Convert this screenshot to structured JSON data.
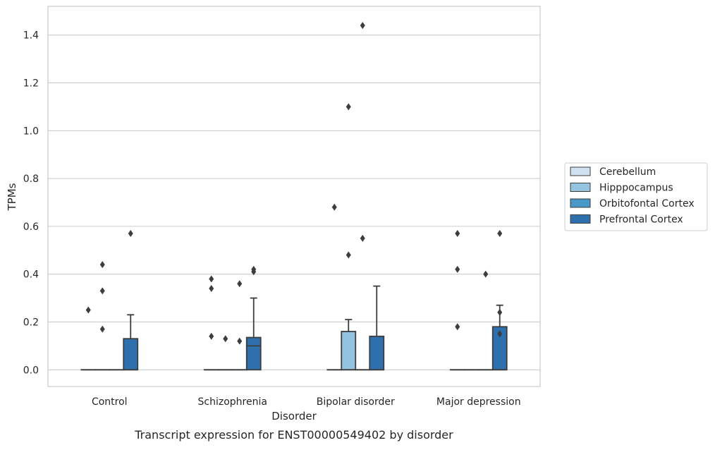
{
  "chart_data": {
    "type": "box",
    "caption": "Transcript expression for ENST00000549402 by disorder",
    "xlabel": "Disorder",
    "ylabel": "TPMs",
    "ylim": [
      -0.07,
      1.52
    ],
    "yticks": [
      0.0,
      0.2,
      0.4,
      0.6,
      0.8,
      1.0,
      1.2,
      1.4
    ],
    "ytick_labels": [
      "0.0",
      "0.2",
      "0.4",
      "0.6",
      "0.8",
      "1.0",
      "1.2",
      "1.4"
    ],
    "grid": "horizontal",
    "legend_position": "right",
    "categories": [
      "Control",
      "Schizophrenia",
      "Bipolar disorder",
      "Major depression"
    ],
    "series": [
      {
        "name": "Cerebellum",
        "color": "#d0e1f2",
        "boxes": [
          {
            "q1": 0,
            "median": 0,
            "q3": 0,
            "whisker_low": 0,
            "whisker_high": 0,
            "outliers": [
              0.25
            ]
          },
          {
            "q1": 0,
            "median": 0,
            "q3": 0,
            "whisker_low": 0,
            "whisker_high": 0,
            "outliers": [
              0.38,
              0.34,
              0.14
            ]
          },
          {
            "q1": 0,
            "median": 0,
            "q3": 0,
            "whisker_low": 0,
            "whisker_high": 0,
            "outliers": [
              0.68
            ]
          },
          {
            "q1": 0,
            "median": 0,
            "q3": 0,
            "whisker_low": 0,
            "whisker_high": 0,
            "outliers": [
              0.57,
              0.42,
              0.18
            ]
          }
        ]
      },
      {
        "name": "Hipppocampus",
        "color": "#94c4df",
        "boxes": [
          {
            "q1": 0,
            "median": 0,
            "q3": 0,
            "whisker_low": 0,
            "whisker_high": 0,
            "outliers": [
              0.44,
              0.33,
              0.17
            ]
          },
          {
            "q1": 0,
            "median": 0,
            "q3": 0,
            "whisker_low": 0,
            "whisker_high": 0,
            "outliers": [
              0.13
            ]
          },
          {
            "q1": 0,
            "median": 0,
            "q3": 0.16,
            "whisker_low": 0,
            "whisker_high": 0.21,
            "outliers": [
              1.1,
              0.48
            ]
          },
          {
            "q1": 0,
            "median": 0,
            "q3": 0,
            "whisker_low": 0,
            "whisker_high": 0,
            "outliers": []
          }
        ]
      },
      {
        "name": "Orbitofontal Cortex",
        "color": "#4a98c9",
        "boxes": [
          {
            "q1": 0,
            "median": 0,
            "q3": 0,
            "whisker_low": 0,
            "whisker_high": 0,
            "outliers": []
          },
          {
            "q1": 0,
            "median": 0,
            "q3": 0,
            "whisker_low": 0,
            "whisker_high": 0,
            "outliers": [
              0.36,
              0.12
            ]
          },
          {
            "q1": 0,
            "median": 0,
            "q3": 0,
            "whisker_low": 0,
            "whisker_high": 0,
            "outliers": [
              1.44,
              0.55
            ]
          },
          {
            "q1": 0,
            "median": 0,
            "q3": 0,
            "whisker_low": 0,
            "whisker_high": 0,
            "outliers": [
              0.4
            ]
          }
        ]
      },
      {
        "name": "Prefrontal Cortex",
        "color": "#2e6fae",
        "boxes": [
          {
            "q1": 0,
            "median": 0,
            "q3": 0.13,
            "whisker_low": 0,
            "whisker_high": 0.23,
            "outliers": [
              0.57
            ]
          },
          {
            "q1": 0,
            "median": 0.1,
            "q3": 0.135,
            "whisker_low": 0,
            "whisker_high": 0.3,
            "outliers": [
              0.42,
              0.41
            ]
          },
          {
            "q1": 0,
            "median": 0,
            "q3": 0.14,
            "whisker_low": 0,
            "whisker_high": 0.35,
            "outliers": []
          },
          {
            "q1": 0,
            "median": 0,
            "q3": 0.18,
            "whisker_low": 0,
            "whisker_high": 0.27,
            "outliers": [
              0.57,
              0.24,
              0.15
            ]
          }
        ]
      }
    ]
  }
}
